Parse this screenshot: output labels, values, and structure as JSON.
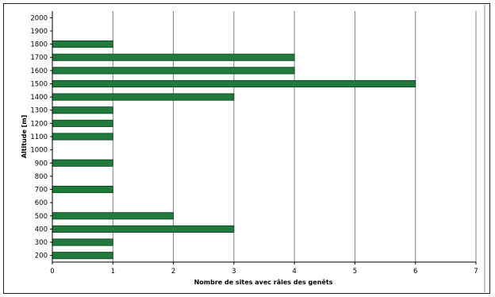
{
  "chart_data": {
    "type": "bar",
    "orientation": "horizontal",
    "xlabel": "Nombre de sites avec râles des genêts",
    "ylabel": "Altitude [m]",
    "xlim": [
      0,
      7
    ],
    "x_ticks": [
      "0",
      "1",
      "2",
      "3",
      "4",
      "5",
      "6",
      "7"
    ],
    "ylim": [
      200,
      2000
    ],
    "y_ticks": [
      "2000",
      "1900",
      "1800",
      "1700",
      "1600",
      "1500",
      "1400",
      "1300",
      "1200",
      "1100",
      "1000",
      "900",
      "800",
      "700",
      "600",
      "500",
      "400",
      "300",
      "200"
    ],
    "categories": [
      200,
      300,
      400,
      500,
      700,
      900,
      1100,
      1200,
      1300,
      1400,
      1500,
      1600,
      1700,
      1800
    ],
    "values": [
      1,
      1,
      3,
      2,
      1,
      1,
      1,
      1,
      1,
      3,
      6,
      4,
      4,
      1
    ],
    "bar_color": "#1f7a3c",
    "grid": "vertical"
  }
}
